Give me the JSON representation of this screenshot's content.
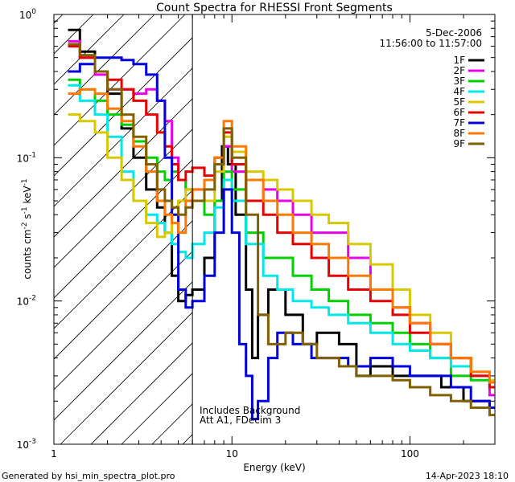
{
  "chart_data": {
    "type": "line",
    "title": "Count Spectra for RHESSI Front Segments",
    "xlabel": "Energy (keV)",
    "ylabel": "counts cm",
    "ylabel_parts": {
      "base": "counts cm",
      "exp1": "-2",
      "s": " s",
      "exp2": "-1",
      "kev": " keV",
      "exp3": "-1"
    },
    "xscale": "log",
    "yscale": "log",
    "xlim": [
      1,
      300
    ],
    "ylim": [
      0.001,
      1
    ],
    "x_ticks": [
      {
        "value": 1,
        "label": "1"
      },
      {
        "value": 10,
        "label": "10"
      },
      {
        "value": 100,
        "label": "100"
      }
    ],
    "y_ticks": [
      {
        "value": 0.001,
        "base": "10",
        "exp": "-3"
      },
      {
        "value": 0.01,
        "base": "10",
        "exp": "-2"
      },
      {
        "value": 0.1,
        "base": "10",
        "exp": "-1"
      },
      {
        "value": 1,
        "base": "10",
        "exp": "0"
      }
    ],
    "vertical_line_energy": 6,
    "hatch_region_energy": [
      1,
      6
    ],
    "date": "5-Dec-2006",
    "time_range": "11:56:00 to 11:57:00",
    "annotations": [
      "Includes Background",
      "Att A1, FDecim 3"
    ],
    "series": [
      {
        "name": "1F",
        "color": "#000000",
        "values": [
          [
            1.2,
            0.78
          ],
          [
            1.4,
            0.55
          ],
          [
            1.7,
            0.4
          ],
          [
            2.0,
            0.28
          ],
          [
            2.4,
            0.16
          ],
          [
            2.8,
            0.1
          ],
          [
            3.3,
            0.06
          ],
          [
            3.8,
            0.045
          ],
          [
            4.2,
            0.03
          ],
          [
            4.6,
            0.015
          ],
          [
            5.0,
            0.01
          ],
          [
            5.5,
            0.011
          ],
          [
            6.0,
            0.012
          ],
          [
            7.0,
            0.02
          ],
          [
            8.0,
            0.05
          ],
          [
            8.8,
            0.12
          ],
          [
            9.5,
            0.09
          ],
          [
            10.5,
            0.04
          ],
          [
            12,
            0.012
          ],
          [
            13,
            0.004
          ],
          [
            14,
            0.008
          ],
          [
            16,
            0.012
          ],
          [
            20,
            0.008
          ],
          [
            25,
            0.005
          ],
          [
            30,
            0.006
          ],
          [
            40,
            0.005
          ],
          [
            50,
            0.003
          ],
          [
            60,
            0.0035
          ],
          [
            80,
            0.003
          ],
          [
            100,
            0.003
          ],
          [
            150,
            0.0025
          ],
          [
            200,
            0.002
          ],
          [
            280,
            0.0018
          ]
        ]
      },
      {
        "name": "2F",
        "color": "#e800e8",
        "values": [
          [
            1.2,
            0.65
          ],
          [
            1.4,
            0.5
          ],
          [
            1.7,
            0.38
          ],
          [
            2.0,
            0.3
          ],
          [
            2.4,
            0.3
          ],
          [
            2.8,
            0.28
          ],
          [
            3.3,
            0.3
          ],
          [
            3.8,
            0.25
          ],
          [
            4.2,
            0.18
          ],
          [
            4.6,
            0.1
          ],
          [
            5.0,
            0.07
          ],
          [
            5.5,
            0.06
          ],
          [
            6.0,
            0.06
          ],
          [
            7.0,
            0.07
          ],
          [
            8.0,
            0.09
          ],
          [
            9.0,
            0.12
          ],
          [
            10,
            0.08
          ],
          [
            12,
            0.05
          ],
          [
            15,
            0.06
          ],
          [
            18,
            0.05
          ],
          [
            22,
            0.04
          ],
          [
            28,
            0.03
          ],
          [
            35,
            0.03
          ],
          [
            45,
            0.02
          ],
          [
            60,
            0.012
          ],
          [
            80,
            0.009
          ],
          [
            100,
            0.007
          ],
          [
            130,
            0.005
          ],
          [
            170,
            0.004
          ],
          [
            220,
            0.003
          ],
          [
            280,
            0.0022
          ]
        ]
      },
      {
        "name": "3F",
        "color": "#00d000",
        "values": [
          [
            1.2,
            0.35
          ],
          [
            1.4,
            0.3
          ],
          [
            1.7,
            0.25
          ],
          [
            2.0,
            0.2
          ],
          [
            2.4,
            0.17
          ],
          [
            2.8,
            0.13
          ],
          [
            3.3,
            0.1
          ],
          [
            3.8,
            0.08
          ],
          [
            4.2,
            0.07
          ],
          [
            4.6,
            0.08
          ],
          [
            5.0,
            0.07
          ],
          [
            5.5,
            0.06
          ],
          [
            6.0,
            0.05
          ],
          [
            7.0,
            0.04
          ],
          [
            8.0,
            0.05
          ],
          [
            9.0,
            0.08
          ],
          [
            10,
            0.06
          ],
          [
            12,
            0.03
          ],
          [
            15,
            0.02
          ],
          [
            18,
            0.02
          ],
          [
            22,
            0.015
          ],
          [
            28,
            0.012
          ],
          [
            35,
            0.01
          ],
          [
            45,
            0.008
          ],
          [
            60,
            0.007
          ],
          [
            80,
            0.006
          ],
          [
            100,
            0.005
          ],
          [
            130,
            0.004
          ],
          [
            170,
            0.003
          ],
          [
            220,
            0.0028
          ],
          [
            280,
            0.0025
          ]
        ]
      },
      {
        "name": "4F",
        "color": "#00e8e8",
        "values": [
          [
            1.2,
            0.32
          ],
          [
            1.4,
            0.25
          ],
          [
            1.7,
            0.2
          ],
          [
            2.0,
            0.14
          ],
          [
            2.4,
            0.08
          ],
          [
            2.8,
            0.05
          ],
          [
            3.3,
            0.04
          ],
          [
            3.8,
            0.035
          ],
          [
            4.2,
            0.03
          ],
          [
            4.6,
            0.025
          ],
          [
            5.0,
            0.022
          ],
          [
            5.5,
            0.02
          ],
          [
            6.0,
            0.025
          ],
          [
            7.0,
            0.03
          ],
          [
            8.0,
            0.045
          ],
          [
            9.0,
            0.07
          ],
          [
            10,
            0.05
          ],
          [
            12,
            0.025
          ],
          [
            15,
            0.015
          ],
          [
            18,
            0.012
          ],
          [
            22,
            0.01
          ],
          [
            28,
            0.009
          ],
          [
            35,
            0.008
          ],
          [
            45,
            0.007
          ],
          [
            60,
            0.006
          ],
          [
            80,
            0.005
          ],
          [
            100,
            0.0045
          ],
          [
            130,
            0.004
          ],
          [
            170,
            0.0035
          ],
          [
            220,
            0.003
          ],
          [
            280,
            0.0025
          ]
        ]
      },
      {
        "name": "5F",
        "color": "#d8c800",
        "values": [
          [
            1.2,
            0.2
          ],
          [
            1.4,
            0.18
          ],
          [
            1.7,
            0.15
          ],
          [
            2.0,
            0.1
          ],
          [
            2.4,
            0.07
          ],
          [
            2.8,
            0.05
          ],
          [
            3.3,
            0.035
          ],
          [
            3.8,
            0.028
          ],
          [
            4.2,
            0.03
          ],
          [
            4.6,
            0.04
          ],
          [
            5.0,
            0.05
          ],
          [
            5.5,
            0.06
          ],
          [
            6.0,
            0.05
          ],
          [
            7.0,
            0.05
          ],
          [
            8.0,
            0.08
          ],
          [
            9.0,
            0.14
          ],
          [
            10,
            0.11
          ],
          [
            12,
            0.08
          ],
          [
            15,
            0.07
          ],
          [
            18,
            0.06
          ],
          [
            22,
            0.05
          ],
          [
            28,
            0.04
          ],
          [
            35,
            0.035
          ],
          [
            45,
            0.025
          ],
          [
            60,
            0.018
          ],
          [
            80,
            0.012
          ],
          [
            100,
            0.008
          ],
          [
            130,
            0.006
          ],
          [
            170,
            0.004
          ],
          [
            220,
            0.0032
          ],
          [
            280,
            0.0028
          ]
        ]
      },
      {
        "name": "6F",
        "color": "#e80000",
        "values": [
          [
            1.2,
            0.6
          ],
          [
            1.4,
            0.5
          ],
          [
            1.7,
            0.4
          ],
          [
            2.0,
            0.35
          ],
          [
            2.4,
            0.3
          ],
          [
            2.8,
            0.25
          ],
          [
            3.3,
            0.2
          ],
          [
            3.8,
            0.15
          ],
          [
            4.2,
            0.12
          ],
          [
            4.6,
            0.09
          ],
          [
            5.0,
            0.07
          ],
          [
            5.5,
            0.08
          ],
          [
            6.0,
            0.085
          ],
          [
            7.0,
            0.075
          ],
          [
            8.0,
            0.1
          ],
          [
            9.0,
            0.15
          ],
          [
            10,
            0.09
          ],
          [
            12,
            0.05
          ],
          [
            15,
            0.04
          ],
          [
            18,
            0.03
          ],
          [
            22,
            0.025
          ],
          [
            28,
            0.02
          ],
          [
            35,
            0.015
          ],
          [
            45,
            0.012
          ],
          [
            60,
            0.01
          ],
          [
            80,
            0.008
          ],
          [
            100,
            0.006
          ],
          [
            130,
            0.005
          ],
          [
            170,
            0.004
          ],
          [
            220,
            0.003
          ],
          [
            280,
            0.0025
          ]
        ]
      },
      {
        "name": "7F",
        "color": "#0000e0",
        "values": [
          [
            1.2,
            0.4
          ],
          [
            1.4,
            0.45
          ],
          [
            1.7,
            0.5
          ],
          [
            2.0,
            0.5
          ],
          [
            2.4,
            0.48
          ],
          [
            2.8,
            0.45
          ],
          [
            3.3,
            0.38
          ],
          [
            3.8,
            0.25
          ],
          [
            4.2,
            0.1
          ],
          [
            4.6,
            0.04
          ],
          [
            5.0,
            0.012
          ],
          [
            5.5,
            0.009
          ],
          [
            6.0,
            0.01
          ],
          [
            7.0,
            0.015
          ],
          [
            8.0,
            0.03
          ],
          [
            9.0,
            0.06
          ],
          [
            10,
            0.03
          ],
          [
            11,
            0.005
          ],
          [
            12,
            0.003
          ],
          [
            13,
            0.0015
          ],
          [
            14,
            0.002
          ],
          [
            16,
            0.004
          ],
          [
            18,
            0.006
          ],
          [
            22,
            0.005
          ],
          [
            28,
            0.004
          ],
          [
            35,
            0.004
          ],
          [
            45,
            0.0035
          ],
          [
            60,
            0.004
          ],
          [
            80,
            0.0035
          ],
          [
            100,
            0.003
          ],
          [
            130,
            0.003
          ],
          [
            170,
            0.0025
          ],
          [
            220,
            0.002
          ],
          [
            280,
            0.0018
          ]
        ]
      },
      {
        "name": "8F",
        "color": "#ff7800",
        "values": [
          [
            1.2,
            0.28
          ],
          [
            1.4,
            0.3
          ],
          [
            1.7,
            0.28
          ],
          [
            2.0,
            0.22
          ],
          [
            2.4,
            0.18
          ],
          [
            2.8,
            0.12
          ],
          [
            3.3,
            0.08
          ],
          [
            3.8,
            0.05
          ],
          [
            4.2,
            0.04
          ],
          [
            4.6,
            0.035
          ],
          [
            5.0,
            0.03
          ],
          [
            5.5,
            0.05
          ],
          [
            6.0,
            0.06
          ],
          [
            7.0,
            0.07
          ],
          [
            8.0,
            0.1
          ],
          [
            9.0,
            0.18
          ],
          [
            10,
            0.12
          ],
          [
            12,
            0.07
          ],
          [
            15,
            0.05
          ],
          [
            18,
            0.04
          ],
          [
            22,
            0.03
          ],
          [
            28,
            0.025
          ],
          [
            35,
            0.02
          ],
          [
            45,
            0.015
          ],
          [
            60,
            0.012
          ],
          [
            80,
            0.009
          ],
          [
            100,
            0.007
          ],
          [
            130,
            0.005
          ],
          [
            170,
            0.004
          ],
          [
            220,
            0.0032
          ],
          [
            280,
            0.0027
          ]
        ]
      },
      {
        "name": "9F",
        "color": "#806000",
        "values": [
          [
            1.2,
            0.62
          ],
          [
            1.4,
            0.52
          ],
          [
            1.7,
            0.4
          ],
          [
            2.0,
            0.3
          ],
          [
            2.4,
            0.2
          ],
          [
            2.8,
            0.14
          ],
          [
            3.3,
            0.09
          ],
          [
            3.8,
            0.06
          ],
          [
            4.2,
            0.05
          ],
          [
            4.6,
            0.045
          ],
          [
            5.0,
            0.04
          ],
          [
            5.5,
            0.045
          ],
          [
            6.0,
            0.05
          ],
          [
            7.0,
            0.06
          ],
          [
            8.0,
            0.09
          ],
          [
            9.0,
            0.16
          ],
          [
            10,
            0.1
          ],
          [
            12,
            0.04
          ],
          [
            14,
            0.008
          ],
          [
            16,
            0.005
          ],
          [
            20,
            0.006
          ],
          [
            25,
            0.005
          ],
          [
            30,
            0.004
          ],
          [
            40,
            0.0035
          ],
          [
            50,
            0.003
          ],
          [
            60,
            0.003
          ],
          [
            80,
            0.0028
          ],
          [
            100,
            0.0025
          ],
          [
            130,
            0.0022
          ],
          [
            170,
            0.002
          ],
          [
            220,
            0.0018
          ],
          [
            280,
            0.0016
          ]
        ]
      }
    ]
  },
  "footer": {
    "generated_by": "Generated by hsi_min_spectra_plot.pro",
    "timestamp": "14-Apr-2023 18:10"
  }
}
